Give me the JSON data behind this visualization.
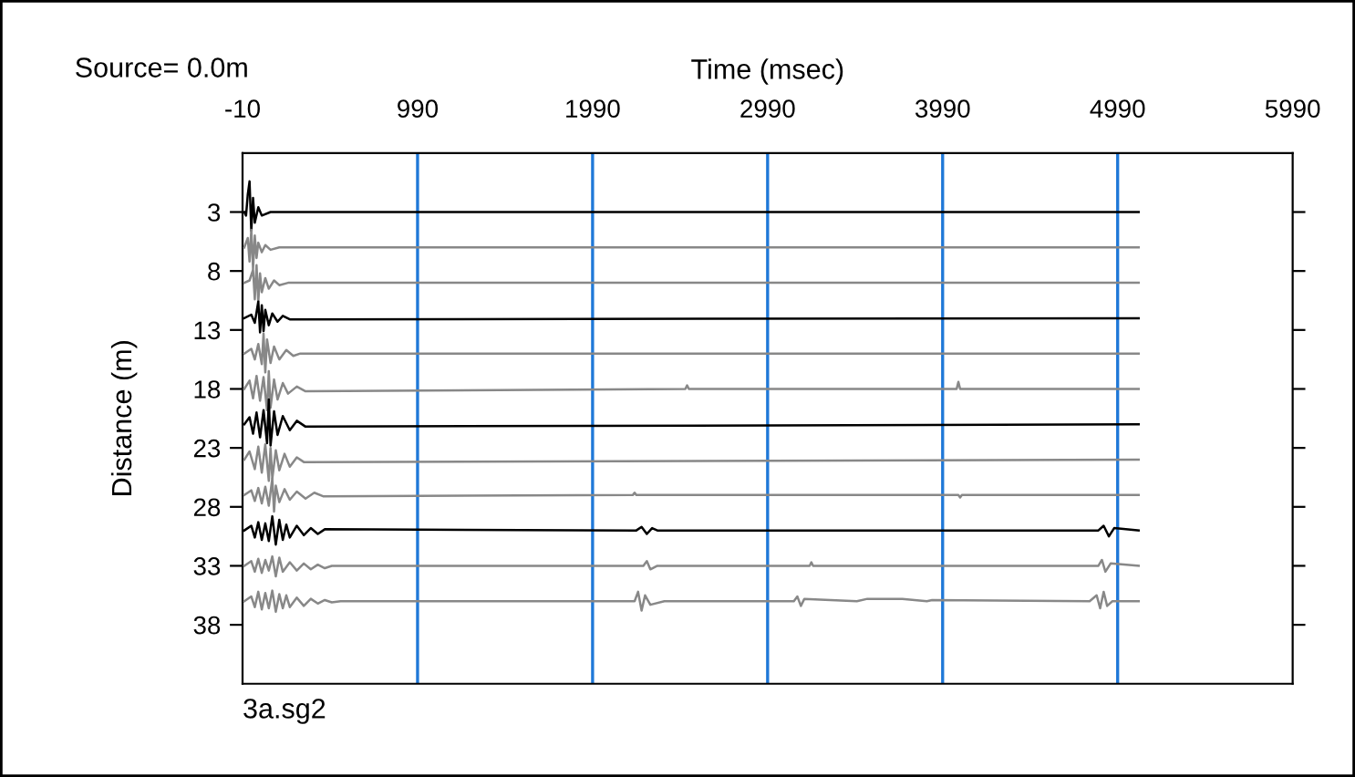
{
  "chart_data": {
    "type": "line",
    "xlabel": "Time (msec)",
    "ylabel": "Distance (m)",
    "xlim": [
      -10,
      5990
    ],
    "xticks": [
      -10,
      990,
      1990,
      2990,
      3990,
      4990,
      5990
    ],
    "ylim": [
      43,
      -2
    ],
    "yticks": [
      3,
      8,
      13,
      18,
      23,
      28,
      33,
      38
    ],
    "grid": false,
    "legend": false,
    "marker": "none",
    "line_style": "solid",
    "ref_lines": [
      {
        "axis": "x",
        "value": 990,
        "color": "#1f78d8"
      },
      {
        "axis": "x",
        "value": 1990,
        "color": "#1f78d8"
      },
      {
        "axis": "x",
        "value": 2990,
        "color": "#1f78d8"
      },
      {
        "axis": "x",
        "value": 3990,
        "color": "#1f78d8"
      },
      {
        "axis": "x",
        "value": 4990,
        "color": "#1f78d8"
      }
    ],
    "annotations": [
      "Source= 0.0m",
      "3a.sg2"
    ],
    "series": [
      {
        "color": "#000000",
        "x": [
          0,
          10,
          20,
          30,
          40,
          50,
          60,
          80,
          100,
          150,
          5110
        ],
        "values": [
          3,
          3.3,
          1.5,
          0.4,
          4.6,
          1.8,
          3.9,
          2.6,
          3.3,
          3,
          3
        ]
      },
      {
        "color": "#888888",
        "x": [
          0,
          20,
          30,
          40,
          50,
          60,
          70,
          80,
          100,
          120,
          150,
          200,
          5110
        ],
        "values": [
          6,
          5.2,
          7.2,
          4.5,
          7.8,
          5.0,
          6.9,
          5.6,
          6.4,
          5.8,
          6.2,
          6,
          6
        ]
      },
      {
        "color": "#888888",
        "x": [
          0,
          30,
          50,
          60,
          70,
          80,
          90,
          100,
          120,
          140,
          170,
          200,
          250,
          5110
        ],
        "values": [
          9,
          8.8,
          7.9,
          10.4,
          7.5,
          10.6,
          8.2,
          9.8,
          8.6,
          9.5,
          8.8,
          9.2,
          9,
          9
        ]
      },
      {
        "color": "#000000",
        "x": [
          0,
          40,
          60,
          80,
          90,
          100,
          110,
          120,
          140,
          160,
          190,
          220,
          260,
          5110
        ],
        "values": [
          12,
          11.7,
          12.4,
          10.6,
          13.2,
          10.9,
          13.1,
          11.3,
          12.6,
          11.6,
          12.3,
          11.8,
          12.1,
          12
        ]
      },
      {
        "color": "#888888",
        "x": [
          0,
          40,
          60,
          80,
          100,
          110,
          120,
          130,
          150,
          170,
          200,
          240,
          280,
          320,
          5110
        ],
        "values": [
          15,
          14.6,
          15.5,
          14.2,
          15.9,
          13.3,
          16.6,
          13.8,
          15.8,
          14.4,
          15.5,
          14.7,
          15.2,
          15,
          15
        ]
      },
      {
        "color": "#888888",
        "x": [
          0,
          30,
          50,
          70,
          90,
          110,
          130,
          140,
          150,
          170,
          190,
          220,
          250,
          300,
          350,
          2520,
          2530,
          2540,
          4070,
          4080,
          4090,
          5110
        ],
        "values": [
          18,
          17.3,
          18.8,
          16.9,
          19.0,
          17.0,
          19.8,
          16.5,
          19.6,
          17.2,
          18.9,
          17.5,
          18.4,
          17.8,
          18.2,
          18,
          17.7,
          18,
          18,
          17.4,
          18,
          18
        ]
      },
      {
        "color": "#000000",
        "x": [
          0,
          30,
          50,
          70,
          90,
          110,
          130,
          140,
          150,
          170,
          190,
          220,
          260,
          300,
          350,
          5110
        ],
        "values": [
          21,
          20.4,
          21.8,
          20.0,
          22.1,
          19.8,
          22.6,
          18.9,
          22.8,
          19.9,
          21.9,
          20.3,
          21.5,
          20.7,
          21.2,
          21
        ]
      },
      {
        "color": "#888888",
        "x": [
          0,
          30,
          60,
          80,
          100,
          120,
          140,
          150,
          160,
          180,
          200,
          230,
          260,
          300,
          340,
          5110
        ],
        "values": [
          24,
          23.3,
          24.8,
          22.9,
          25.1,
          22.7,
          25.8,
          23.0,
          25.6,
          23.2,
          24.9,
          23.5,
          24.6,
          23.8,
          24.2,
          24
        ]
      },
      {
        "color": "#888888",
        "x": [
          0,
          40,
          60,
          80,
          100,
          120,
          140,
          160,
          170,
          180,
          200,
          230,
          260,
          300,
          350,
          400,
          450,
          2220,
          2230,
          2240,
          4080,
          4090,
          4100,
          5110
        ],
        "values": [
          27,
          26.6,
          27.5,
          26.4,
          27.7,
          26.3,
          27.9,
          25.6,
          28.4,
          26.2,
          27.6,
          26.5,
          27.4,
          26.7,
          27.3,
          26.8,
          27.1,
          27,
          26.8,
          27,
          27,
          27.2,
          27,
          27
        ]
      },
      {
        "color": "#000000",
        "x": [
          0,
          40,
          60,
          80,
          100,
          120,
          140,
          160,
          180,
          200,
          220,
          240,
          260,
          300,
          340,
          380,
          420,
          460,
          2240,
          2270,
          2300,
          2330,
          2360,
          4880,
          4910,
          4940,
          4970,
          5110
        ],
        "values": [
          30,
          29.6,
          30.6,
          29.3,
          30.8,
          29.4,
          30.9,
          28.8,
          31.2,
          29.1,
          30.8,
          29.5,
          30.6,
          29.6,
          30.4,
          29.8,
          30.3,
          29.9,
          30,
          29.7,
          30.3,
          29.8,
          30,
          30,
          29.6,
          30.5,
          29.8,
          30
        ]
      },
      {
        "color": "#888888",
        "x": [
          0,
          40,
          60,
          80,
          100,
          120,
          140,
          160,
          180,
          200,
          220,
          260,
          300,
          340,
          380,
          420,
          460,
          500,
          2280,
          2300,
          2320,
          2360,
          3230,
          3240,
          3250,
          4880,
          4900,
          4920,
          4950,
          5110
        ],
        "values": [
          33,
          32.6,
          33.5,
          32.4,
          33.6,
          32.5,
          33.4,
          32.2,
          33.9,
          32.3,
          33.5,
          32.7,
          33.4,
          32.8,
          33.3,
          32.9,
          33.2,
          33,
          33,
          32.6,
          33.3,
          33,
          33,
          32.7,
          33,
          33,
          32.5,
          33.5,
          32.8,
          33
        ]
      },
      {
        "color": "#888888",
        "x": [
          0,
          40,
          60,
          80,
          100,
          120,
          140,
          160,
          180,
          200,
          220,
          240,
          260,
          300,
          340,
          380,
          420,
          460,
          500,
          550,
          2230,
          2250,
          2270,
          2290,
          2320,
          2400,
          2600,
          3140,
          3160,
          3180,
          3200,
          3500,
          3560,
          3760,
          3900,
          3930,
          4830,
          4870,
          4890,
          4910,
          4930,
          4960,
          5110
        ],
        "values": [
          36,
          35.6,
          36.5,
          35.2,
          36.7,
          35.3,
          36.6,
          35.1,
          36.9,
          35.4,
          36.6,
          35.5,
          36.5,
          35.7,
          36.4,
          35.8,
          36.2,
          35.9,
          36.1,
          36,
          36,
          35.2,
          36.8,
          35.5,
          36.3,
          36,
          36,
          36,
          35.6,
          36.4,
          35.8,
          36,
          35.8,
          35.8,
          36,
          35.9,
          36,
          35.5,
          36.6,
          35.2,
          36.4,
          36,
          36
        ]
      }
    ]
  }
}
